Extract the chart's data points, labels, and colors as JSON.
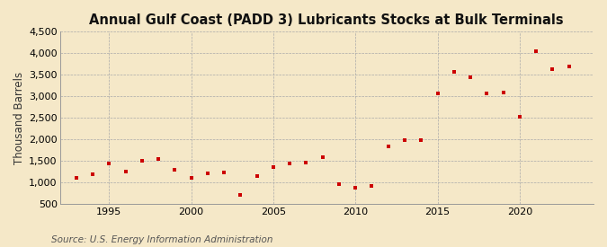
{
  "title": "Annual Gulf Coast (PADD 3) Lubricants Stocks at Bulk Terminals",
  "ylabel": "Thousand Barrels",
  "source": "Source: U.S. Energy Information Administration",
  "background_color": "#f5e8c8",
  "marker_color": "#cc0000",
  "years": [
    1993,
    1994,
    1995,
    1996,
    1997,
    1998,
    1999,
    2000,
    2001,
    2002,
    2003,
    2004,
    2005,
    2006,
    2007,
    2008,
    2009,
    2010,
    2011,
    2012,
    2013,
    2014,
    2015,
    2016,
    2017,
    2018,
    2019,
    2020,
    2021,
    2022,
    2023
  ],
  "values": [
    1100,
    1180,
    1430,
    1250,
    1500,
    1530,
    1290,
    1100,
    1200,
    1220,
    710,
    1130,
    1350,
    1440,
    1460,
    1570,
    960,
    860,
    920,
    1820,
    1980,
    1970,
    3060,
    3570,
    3430,
    3060,
    3080,
    2520,
    4040,
    3620,
    3690
  ],
  "ylim": [
    500,
    4500
  ],
  "xlim": [
    1992,
    2024.5
  ],
  "yticks": [
    500,
    1000,
    1500,
    2000,
    2500,
    3000,
    3500,
    4000,
    4500
  ],
  "xticks": [
    1995,
    2000,
    2005,
    2010,
    2015,
    2020
  ],
  "title_fontsize": 10.5,
  "label_fontsize": 8.5,
  "tick_fontsize": 8,
  "source_fontsize": 7.5
}
